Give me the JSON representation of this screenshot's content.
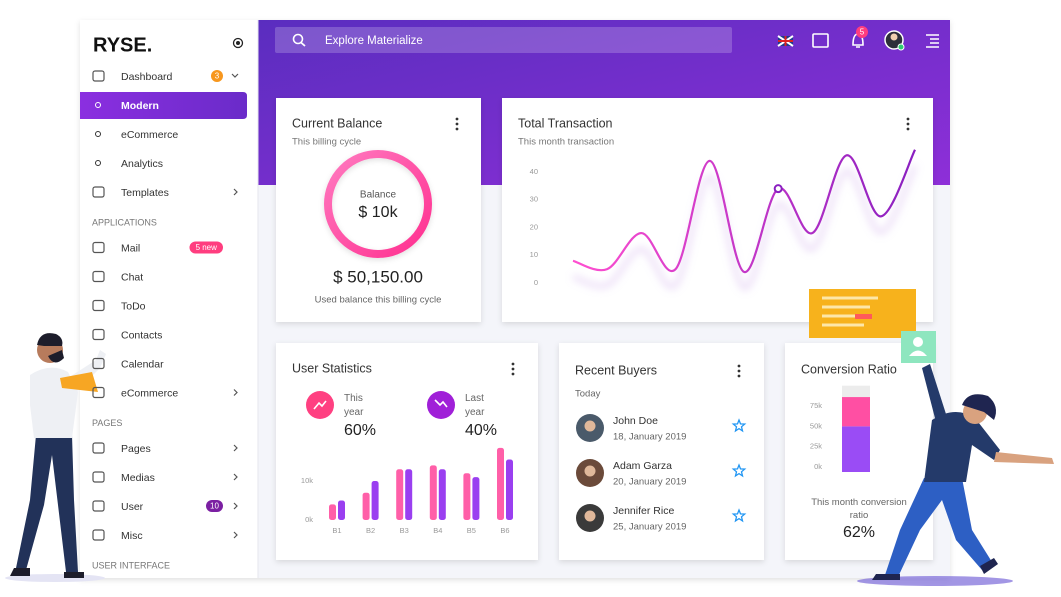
{
  "sidebar": {
    "logo": "RYSE.",
    "sections": [
      {
        "items": [
          {
            "label": "Dashboard",
            "badge": "3",
            "badge_color": "#f7971e",
            "children": [
              {
                "label": "Modern",
                "active": true
              },
              {
                "label": "eCommerce"
              },
              {
                "label": "Analytics"
              }
            ]
          },
          {
            "label": "Templates",
            "submenu": true
          }
        ]
      },
      {
        "title": "APPLICATIONS",
        "items": [
          {
            "label": "Mail",
            "badge": "5 new",
            "badge_color": "#ff3d7f"
          },
          {
            "label": "Chat"
          },
          {
            "label": "ToDo"
          },
          {
            "label": "Contacts"
          },
          {
            "label": "Calendar"
          },
          {
            "label": "eCommerce",
            "submenu": true
          }
        ]
      },
      {
        "title": "PAGES",
        "items": [
          {
            "label": "Pages",
            "submenu": true
          },
          {
            "label": "Medias",
            "submenu": true
          },
          {
            "label": "User",
            "badge": "10",
            "badge_color": "#7b1fa2",
            "submenu": true
          },
          {
            "label": "Misc",
            "submenu": true
          }
        ]
      },
      {
        "title": "USER INTERFACE",
        "items": []
      }
    ]
  },
  "header": {
    "search_placeholder": "Explore Materialize",
    "notifications": "5"
  },
  "balance": {
    "title": "Current Balance",
    "subtitle": "This billing cycle",
    "ring_label": "Balance",
    "ring_value": "$ 10k",
    "amount": "$ 50,150.00",
    "caption": "Used balance this billing cycle"
  },
  "user_statistics": {
    "stats": [
      {
        "label": "This year",
        "value": "60%",
        "color": "#ff4081"
      },
      {
        "label": "Last year",
        "value": "40%",
        "color": "#a020d8"
      }
    ]
  },
  "buyers": {
    "title": "Recent Buyers",
    "subtitle": "Today",
    "people": [
      {
        "name": "John Doe",
        "date": "18, January 2019"
      },
      {
        "name": "Adam Garza",
        "date": "20, January 2019"
      },
      {
        "name": "Jennifer Rice",
        "date": "25, January 2019"
      }
    ]
  },
  "conversion": {
    "caption": "This month conversion ratio",
    "value": "62%"
  },
  "chart_data": [
    {
      "type": "line",
      "title": "Total Transaction",
      "subtitle": "This month transaction",
      "values": [
        8,
        5,
        18,
        5,
        44,
        4,
        34,
        18,
        46,
        24,
        48
      ],
      "color": "#c43be0",
      "highlight_index": 6,
      "ylim": [
        0,
        50
      ],
      "yticks": [
        0,
        10,
        20,
        30,
        40
      ]
    },
    {
      "type": "bar",
      "title": "User Statistics",
      "categories": [
        "B1",
        "B2",
        "B3",
        "B4",
        "B5",
        "B6"
      ],
      "series": [
        {
          "color": "#ff5fa8",
          "values": [
            4,
            7,
            13,
            14,
            12,
            18.5
          ]
        },
        {
          "color": "#9a3ff0",
          "values": [
            5,
            10,
            13,
            13,
            11,
            15.5
          ]
        }
      ],
      "ylim": [
        0,
        20
      ],
      "yticks": [
        {
          "value": 0,
          "label": "0k"
        },
        {
          "value": 10,
          "label": "10k"
        }
      ]
    },
    {
      "type": "stacked_bar",
      "title": "Conversion Ratio",
      "categories": [
        null
      ],
      "series": [
        {
          "color": "#9a4cf5",
          "values": [
            50
          ]
        },
        {
          "color": "#ff4fa3",
          "values": [
            36
          ]
        }
      ],
      "ylim": [
        0,
        100
      ],
      "yticks": [
        {
          "value": 0,
          "label": "0k"
        },
        {
          "value": 25,
          "label": "25k"
        },
        {
          "value": 50,
          "label": "50k"
        },
        {
          "value": 75,
          "label": "75k"
        }
      ]
    }
  ]
}
